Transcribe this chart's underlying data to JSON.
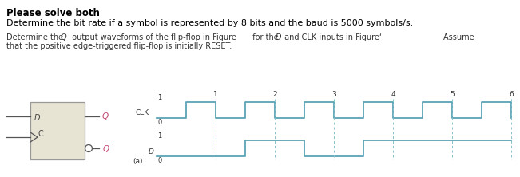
{
  "title_bold": "Please solve both",
  "line1": "Determine the bit rate if a symbol is represented by 8 bits and the baud is 5000 symbols/s.",
  "line2a": "Determine the Q",
  "line2b": " output waveforms of the flip-flop in Figure",
  "line2c": "  for the D and CLK inputs in Figure‘",
  "line2d": "        Assume",
  "line3": "that the positive edge-triggered flip-flop is initially RESET.",
  "clk_color": "#5ba3b5",
  "d_color": "#5ba3b5",
  "dashed_color": "#88bfcc",
  "box_fill": "#e8e4d4",
  "box_edge": "#999999",
  "label_color_pink": "#c04070",
  "label_color_dark": "#333333",
  "clk_time": [
    0.0,
    0.5,
    0.5,
    1.0,
    1.0,
    1.5,
    1.5,
    2.0,
    2.0,
    2.5,
    2.5,
    3.0,
    3.0,
    3.5,
    3.5,
    4.0,
    4.0,
    4.5,
    4.5,
    5.0,
    5.0,
    5.5,
    5.5,
    6.0,
    6.0
  ],
  "clk_signal": [
    0,
    0,
    1,
    1,
    0,
    0,
    1,
    1,
    0,
    0,
    1,
    1,
    0,
    0,
    1,
    1,
    0,
    0,
    1,
    1,
    0,
    0,
    1,
    1,
    0
  ],
  "d_time": [
    0.0,
    1.5,
    1.5,
    2.5,
    2.5,
    3.5,
    3.5,
    6.0
  ],
  "d_signal": [
    0,
    0,
    1,
    1,
    0,
    0,
    1,
    1
  ],
  "xmax": 6.0,
  "tick_positions": [
    1,
    2,
    3,
    4,
    5,
    6
  ],
  "tick_labels": [
    "1",
    "2",
    "3",
    "4",
    "5",
    "6"
  ]
}
